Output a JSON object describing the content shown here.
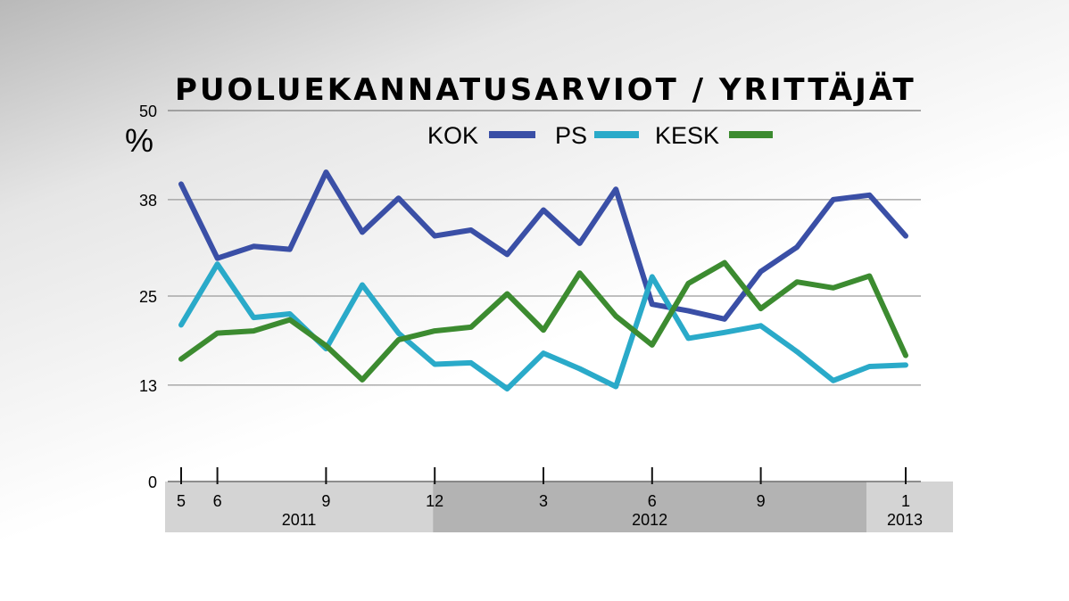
{
  "chart_data": {
    "type": "line",
    "title": "PUOLUEKANNATUSARVIOT / YRITTÄJÄT",
    "ylabel": "%",
    "ylim": [
      0,
      50
    ],
    "yticks": [
      0,
      13,
      25,
      38,
      50
    ],
    "grid": true,
    "legend_position": "top-right",
    "x": [
      "2011-05",
      "2011-06",
      "2011-07",
      "2011-08",
      "2011-09",
      "2011-10",
      "2011-11",
      "2011-12",
      "2012-01",
      "2012-02",
      "2012-03",
      "2012-04",
      "2012-05",
      "2012-06",
      "2012-07",
      "2012-08",
      "2012-09",
      "2012-10",
      "2012-11",
      "2012-12",
      "2013-01"
    ],
    "xtick_labels": [
      {
        "x": "2011-05",
        "label": "5"
      },
      {
        "x": "2011-06",
        "label": "6"
      },
      {
        "x": "2011-09",
        "label": "9"
      },
      {
        "x": "2011-12",
        "label": "12"
      },
      {
        "x": "2012-03",
        "label": "3"
      },
      {
        "x": "2012-06",
        "label": "6"
      },
      {
        "x": "2012-09",
        "label": "9"
      },
      {
        "x": "2013-01",
        "label": "1"
      }
    ],
    "year_bands": [
      {
        "label": "2011",
        "from": "2011-05",
        "to": "2011-12",
        "color": "#d4d4d4"
      },
      {
        "label": "2012",
        "from": "2011-12",
        "to": "2012-12",
        "color": "#b3b3b3"
      },
      {
        "label": "2013",
        "from": "2012-12",
        "to": "2013-01",
        "color": "#d4d4d4"
      }
    ],
    "series": [
      {
        "name": "KOK",
        "color": "#3a4fa6",
        "values": [
          40.1,
          30.1,
          31.7,
          31.3,
          41.7,
          33.6,
          38.2,
          33.1,
          33.9,
          30.6,
          36.6,
          32.1,
          39.4,
          23.9,
          23.0,
          21.9,
          28.3,
          31.6,
          38.0,
          38.6,
          33.1
        ]
      },
      {
        "name": "PS",
        "color": "#2aaac9",
        "values": [
          21.1,
          29.3,
          22.1,
          22.6,
          17.9,
          26.5,
          20.0,
          15.8,
          16.0,
          12.5,
          17.3,
          15.2,
          12.8,
          27.6,
          19.3,
          20.1,
          21.0,
          17.5,
          13.6,
          15.5,
          15.7
        ]
      },
      {
        "name": "KESK",
        "color": "#3c8b30",
        "values": [
          16.5,
          20.0,
          20.3,
          21.8,
          18.3,
          13.7,
          19.1,
          20.3,
          20.8,
          25.3,
          20.4,
          28.1,
          22.3,
          18.4,
          26.7,
          29.5,
          23.3,
          26.9,
          26.1,
          27.7,
          17.0
        ]
      }
    ]
  }
}
